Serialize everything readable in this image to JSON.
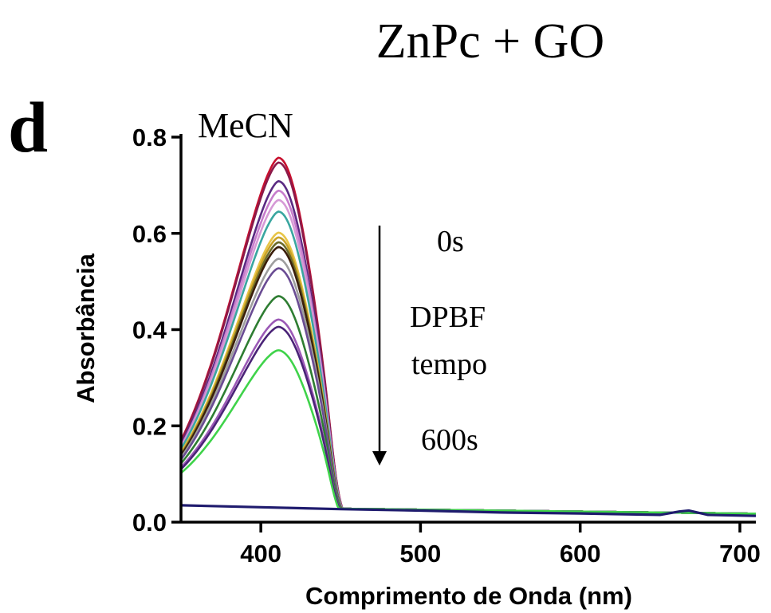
{
  "chart_data": {
    "type": "line",
    "title": "ZnPc + GO",
    "panel_label": "d",
    "solvent_label": "MeCN",
    "xlabel": "Comprimento de Onda (nm)",
    "ylabel": "Absorbância",
    "xlim": [
      350,
      710
    ],
    "ylim": [
      0,
      0.8
    ],
    "xticks": [
      400,
      500,
      600,
      700
    ],
    "yticks": [
      0.0,
      0.2,
      0.4,
      0.6,
      0.8
    ],
    "xtick_labels": [
      "400",
      "500",
      "600",
      "700"
    ],
    "ytick_labels": [
      "0.0",
      "0.2",
      "0.4",
      "0.6",
      "0.8"
    ],
    "grid": false,
    "annotations": {
      "start": "0s",
      "middle_line1": "DPBF",
      "middle_line2": "tempo",
      "end": "600s"
    },
    "peak_wavelength": 411,
    "series": [
      {
        "color": "#c8102e",
        "peak": 0.76,
        "at350": 0.17
      },
      {
        "color": "#8b1a4a",
        "peak": 0.75,
        "at350": 0.168
      },
      {
        "color": "#5a2a82",
        "peak": 0.71,
        "at350": 0.162
      },
      {
        "color": "#c77dcc",
        "peak": 0.69,
        "at350": 0.158
      },
      {
        "color": "#d69ad6",
        "peak": 0.67,
        "at350": 0.155
      },
      {
        "color": "#3aa6a0",
        "peak": 0.645,
        "at350": 0.152
      },
      {
        "color": "#e8c547",
        "peak": 0.6,
        "at350": 0.145
      },
      {
        "color": "#c9a227",
        "peak": 0.59,
        "at350": 0.143
      },
      {
        "color": "#6b6b2a",
        "peak": 0.58,
        "at350": 0.14
      },
      {
        "color": "#3a1e0a",
        "peak": 0.57,
        "at350": 0.138
      },
      {
        "color": "#9e9e9e",
        "peak": 0.545,
        "at350": 0.134
      },
      {
        "color": "#6a4c93",
        "peak": 0.525,
        "at350": 0.13
      },
      {
        "color": "#2e7d32",
        "peak": 0.465,
        "at350": 0.122
      },
      {
        "color": "#9b59b6",
        "peak": 0.415,
        "at350": 0.114
      },
      {
        "color": "#4a2377",
        "peak": 0.4,
        "at350": 0.11
      },
      {
        "color": "#3fd34a",
        "peak": 0.35,
        "at350": 0.102
      }
    ],
    "baseline_series": {
      "color": "#1f1b6e",
      "points": [
        [
          350,
          0.035
        ],
        [
          400,
          0.031
        ],
        [
          450,
          0.027
        ],
        [
          500,
          0.024
        ],
        [
          550,
          0.02
        ],
        [
          600,
          0.018
        ],
        [
          650,
          0.015
        ],
        [
          662,
          0.022
        ],
        [
          668,
          0.024
        ],
        [
          680,
          0.015
        ],
        [
          710,
          0.013
        ]
      ]
    }
  }
}
